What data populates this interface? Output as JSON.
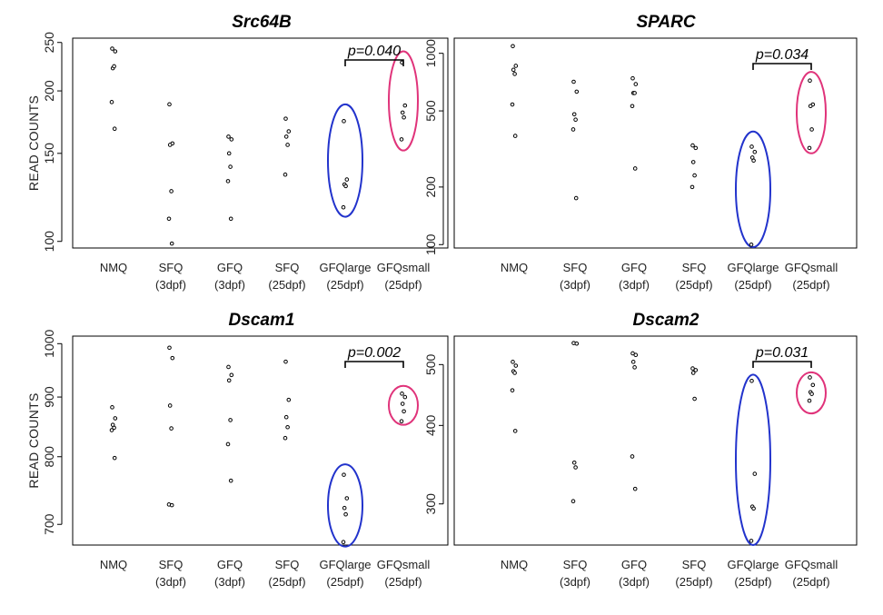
{
  "chart_data": [
    {
      "type": "scatter",
      "title": "Src64B",
      "ylabel": "READ COUNTS",
      "scale": "log",
      "ylim": [
        97,
        255
      ],
      "yticks": [
        100,
        150,
        200,
        250
      ],
      "categories": [
        "NMQ",
        "SFQ",
        "GFQ",
        "SFQ",
        "GFQlarge",
        "GFQsmall"
      ],
      "subcategories": [
        "",
        "(3dpf)",
        "(3dpf)",
        "(25dpf)",
        "(25dpf)",
        "(25dpf)"
      ],
      "series": [
        {
          "values": [
            243,
            240,
            222,
            224,
            190,
            168
          ]
        },
        {
          "values": [
            188,
            157,
            156,
            126,
            111,
            99
          ]
        },
        {
          "values": [
            162,
            160,
            150,
            141,
            132,
            111
          ]
        },
        {
          "values": [
            176,
            166,
            162,
            156,
            136
          ]
        },
        {
          "values": [
            174,
            133,
            130,
            129,
            117
          ]
        },
        {
          "values": [
            228,
            187,
            181,
            177,
            160
          ]
        }
      ],
      "annotation": {
        "text": "p=0.040",
        "from": 4,
        "to": 5
      },
      "highlights": [
        {
          "category": 4,
          "ymin": 112,
          "ymax": 188,
          "color": "#2233cc"
        },
        {
          "category": 5,
          "ymin": 152,
          "ymax": 240,
          "color": "#e0337a"
        }
      ]
    },
    {
      "type": "scatter",
      "title": "SPARC",
      "ylabel": "",
      "scale": "log",
      "ylim": [
        96,
        1200
      ],
      "yticks": [
        100,
        200,
        500,
        1000
      ],
      "categories": [
        "NMQ",
        "SFQ",
        "GFQ",
        "SFQ",
        "GFQlarge",
        "GFQsmall"
      ],
      "subcategories": [
        "",
        "(3dpf)",
        "(3dpf)",
        "(25dpf)",
        "(25dpf)",
        "(25dpf)"
      ],
      "series": [
        {
          "values": [
            1090,
            860,
            820,
            780,
            540,
            370
          ]
        },
        {
          "values": [
            710,
            630,
            480,
            450,
            400,
            175
          ]
        },
        {
          "values": [
            740,
            690,
            620,
            620,
            530,
            250
          ]
        },
        {
          "values": [
            330,
            320,
            270,
            230,
            200
          ]
        },
        {
          "values": [
            325,
            305,
            285,
            275,
            100
          ]
        },
        {
          "values": [
            720,
            540,
            530,
            400,
            320
          ]
        }
      ],
      "annotation": {
        "text": "p=0.034",
        "from": 4,
        "to": 5
      },
      "highlights": [
        {
          "category": 4,
          "ymin": 97,
          "ymax": 390,
          "color": "#2233cc"
        },
        {
          "category": 5,
          "ymin": 300,
          "ymax": 800,
          "color": "#e0337a"
        }
      ]
    },
    {
      "type": "scatter",
      "title": "Dscam1",
      "ylabel": "READ COUNTS",
      "scale": "log",
      "ylim": [
        672,
        1015
      ],
      "yticks": [
        700,
        800,
        900,
        1000
      ],
      "categories": [
        "NMQ",
        "SFQ",
        "GFQ",
        "SFQ",
        "GFQlarge",
        "GFQsmall"
      ],
      "subcategories": [
        "",
        "(3dpf)",
        "(3dpf)",
        "(25dpf)",
        "(25dpf)",
        "(25dpf)"
      ],
      "series": [
        {
          "values": [
            882,
            863,
            852,
            847,
            843,
            798
          ]
        },
        {
          "values": [
            992,
            972,
            885,
            846,
            728,
            727
          ]
        },
        {
          "values": [
            955,
            940,
            930,
            860,
            820,
            763
          ]
        },
        {
          "values": [
            965,
            895,
            865,
            848,
            830
          ]
        },
        {
          "values": [
            772,
            737,
            723,
            714,
            676
          ]
        },
        {
          "values": [
            906,
            900,
            888,
            875,
            858
          ]
        }
      ],
      "annotation": {
        "text": "p=0.002",
        "from": 4,
        "to": 5
      },
      "highlights": [
        {
          "category": 4,
          "ymin": 670,
          "ymax": 788,
          "color": "#2233cc"
        },
        {
          "category": 5,
          "ymin": 852,
          "ymax": 920,
          "color": "#e0337a"
        }
      ]
    },
    {
      "type": "scatter",
      "title": "Dscam2",
      "ylabel": "",
      "scale": "log",
      "ylim": [
        258,
        555
      ],
      "yticks": [
        300,
        400,
        500
      ],
      "categories": [
        "NMQ",
        "SFQ",
        "GFQ",
        "SFQ",
        "GFQlarge",
        "GFQsmall"
      ],
      "subcategories": [
        "",
        "(3dpf)",
        "(3dpf)",
        "(25dpf)",
        "(25dpf)",
        "(25dpf)"
      ],
      "series": [
        {
          "values": [
            505,
            498,
            488,
            485,
            455,
            392
          ]
        },
        {
          "values": [
            541,
            540,
            349,
            343,
            303
          ]
        },
        {
          "values": [
            521,
            518,
            505,
            495,
            357,
            317
          ]
        },
        {
          "values": [
            493,
            490,
            485,
            441
          ]
        },
        {
          "values": [
            471,
            335,
            297,
            295,
            262
          ]
        },
        {
          "values": [
            477,
            464,
            452,
            449,
            438
          ]
        }
      ],
      "annotation": {
        "text": "p=0.031",
        "from": 4,
        "to": 5
      },
      "highlights": [
        {
          "category": 4,
          "ymin": 258,
          "ymax": 482,
          "color": "#2233cc"
        },
        {
          "category": 5,
          "ymin": 418,
          "ymax": 486,
          "color": "#e0337a"
        }
      ]
    }
  ]
}
